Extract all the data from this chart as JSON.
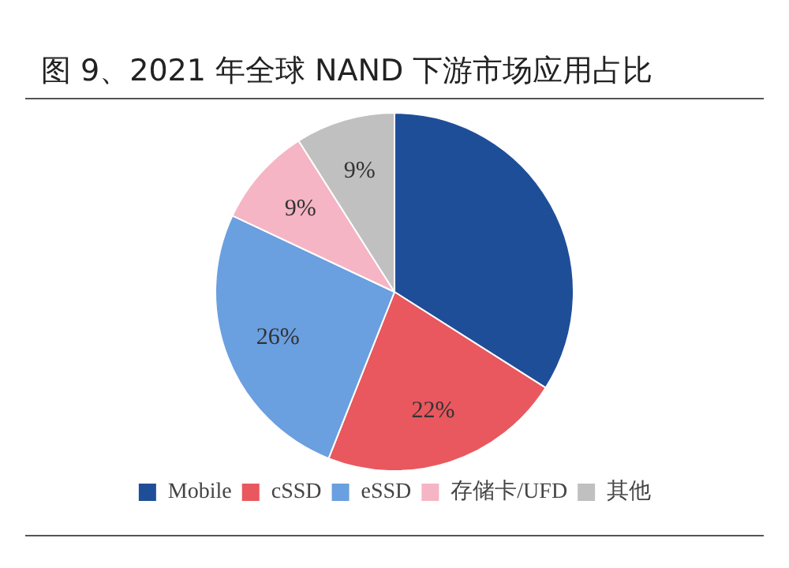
{
  "chart_data": {
    "type": "pie",
    "title": "图 9、2021 年全球 NAND 下游市场应用占比",
    "categories": [
      "Mobile",
      "cSSD",
      "eSSD",
      "存储卡/UFD",
      "其他"
    ],
    "values": [
      34,
      22,
      26,
      9,
      9
    ],
    "value_labels": [
      null,
      "22%",
      "26%",
      "9%",
      "9%"
    ],
    "colors": [
      "#1f4e99",
      "#e8585e",
      "#6a9fe0",
      "#f5b5c4",
      "#c0c0c0"
    ],
    "legend": "bottom"
  }
}
